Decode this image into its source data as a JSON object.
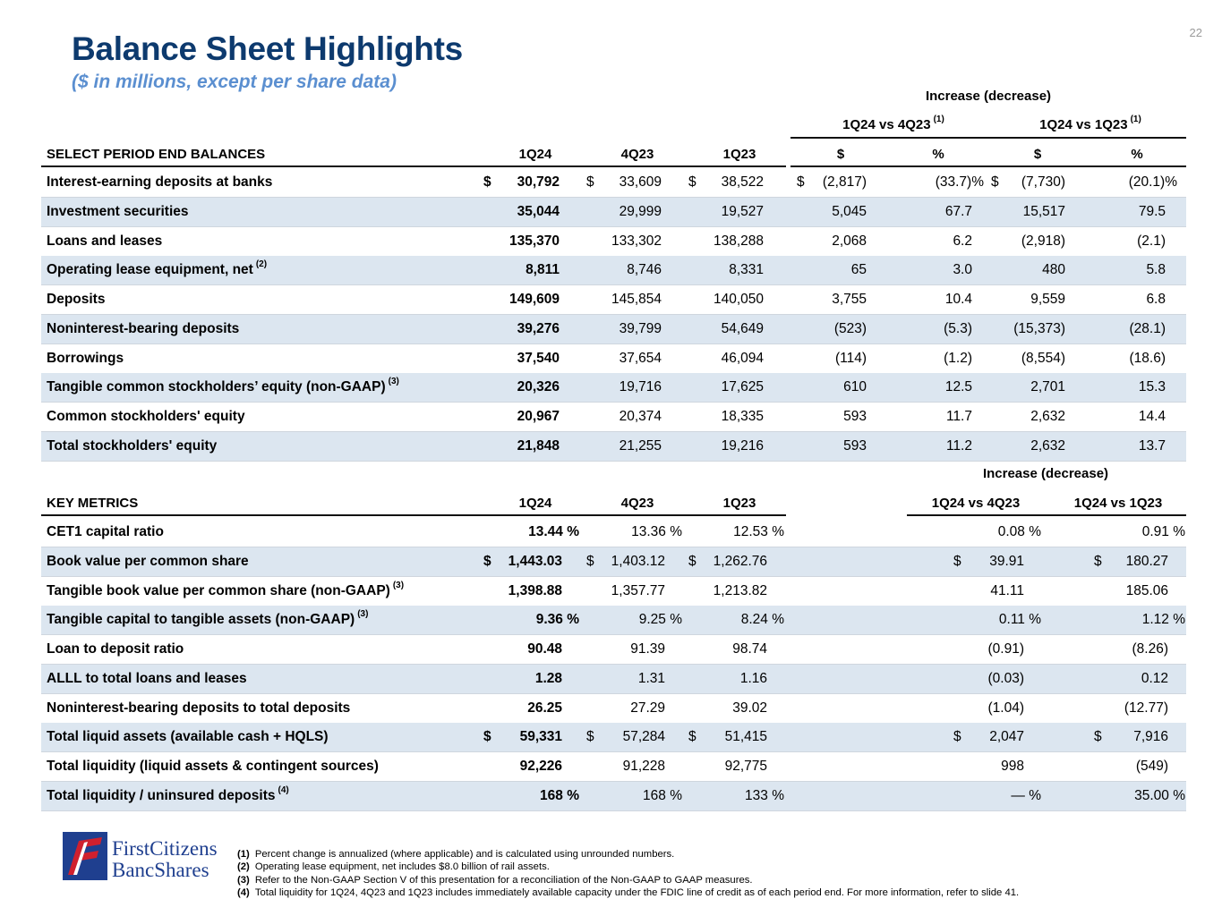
{
  "page_number": "22",
  "title": "Balance Sheet Highlights",
  "subtitle": "($ in millions, except per share data)",
  "balances": {
    "group_header": "Increase (decrease)",
    "compare_headers": [
      {
        "label": "1Q24 vs 4Q23",
        "sup": "(1)"
      },
      {
        "label": "1Q24 vs 1Q23",
        "sup": "(1)"
      }
    ],
    "columns": [
      "SELECT PERIOD END BALANCES",
      "1Q24",
      "4Q23",
      "1Q23",
      "$",
      "%",
      "$",
      "%"
    ],
    "rows": [
      {
        "label": "Interest-earning deposits at banks",
        "sup": "",
        "cells": [
          "$ 30,792",
          "$ 33,609",
          "$ 38,522",
          "$ (2,817)",
          "(33.7)%",
          "$ (7,730)",
          "(20.1)%"
        ]
      },
      {
        "label": "Investment securities",
        "sup": "",
        "cells": [
          "35,044",
          "29,999",
          "19,527",
          "5,045",
          "67.7",
          "15,517",
          "79.5"
        ]
      },
      {
        "label": "Loans and leases",
        "sup": "",
        "cells": [
          "135,370",
          "133,302",
          "138,288",
          "2,068",
          "6.2",
          "(2,918)",
          "(2.1)"
        ]
      },
      {
        "label": "Operating lease equipment, net",
        "sup": "(2)",
        "cells": [
          "8,811",
          "8,746",
          "8,331",
          "65",
          "3.0",
          "480",
          "5.8"
        ]
      },
      {
        "label": "Deposits",
        "sup": "",
        "cells": [
          "149,609",
          "145,854",
          "140,050",
          "3,755",
          "10.4",
          "9,559",
          "6.8"
        ]
      },
      {
        "label": "Noninterest-bearing deposits",
        "sup": "",
        "cells": [
          "39,276",
          "39,799",
          "54,649",
          "(523)",
          "(5.3)",
          "(15,373)",
          "(28.1)"
        ]
      },
      {
        "label": "Borrowings",
        "sup": "",
        "cells": [
          "37,540",
          "37,654",
          "46,094",
          "(114)",
          "(1.2)",
          "(8,554)",
          "(18.6)"
        ]
      },
      {
        "label": "Tangible common stockholders’ equity (non-GAAP)",
        "sup": "(3)",
        "cells": [
          "20,326",
          "19,716",
          "17,625",
          "610",
          "12.5",
          "2,701",
          "15.3"
        ]
      },
      {
        "label": "Common stockholders' equity",
        "sup": "",
        "cells": [
          "20,967",
          "20,374",
          "18,335",
          "593",
          "11.7",
          "2,632",
          "14.4"
        ]
      },
      {
        "label": "Total stockholders' equity",
        "sup": "",
        "cells": [
          "21,848",
          "21,255",
          "19,216",
          "593",
          "11.2",
          "2,632",
          "13.7"
        ]
      }
    ]
  },
  "metrics": {
    "group_header": "Increase (decrease)",
    "columns": [
      "KEY METRICS",
      "1Q24",
      "4Q23",
      "1Q23",
      "1Q24 vs 4Q23",
      "1Q24 vs 1Q23"
    ],
    "rows": [
      {
        "label": "CET1 capital ratio",
        "sup": "",
        "cells": [
          "13.44 %",
          "13.36 %",
          "12.53 %",
          "0.08 %",
          "0.91 %"
        ]
      },
      {
        "label": "Book value per common share",
        "sup": "",
        "cells": [
          "$ 1,443.03",
          "$ 1,403.12",
          "$ 1,262.76",
          "$ 39.91",
          "$ 180.27"
        ]
      },
      {
        "label": "Tangible book value per common share (non-GAAP)",
        "sup": "(3)",
        "cells": [
          "1,398.88",
          "1,357.77",
          "1,213.82",
          "41.11",
          "185.06"
        ]
      },
      {
        "label": "Tangible capital to tangible assets (non-GAAP)",
        "sup": "(3)",
        "cells": [
          "9.36 %",
          "9.25 %",
          "8.24 %",
          "0.11 %",
          "1.12 %"
        ]
      },
      {
        "label": "Loan to deposit ratio",
        "sup": "",
        "cells": [
          "90.48",
          "91.39",
          "98.74",
          "(0.91)",
          "(8.26)"
        ]
      },
      {
        "label": "ALLL to total loans and leases",
        "sup": "",
        "cells": [
          "1.28",
          "1.31",
          "1.16",
          "(0.03)",
          "0.12"
        ]
      },
      {
        "label": "Noninterest-bearing deposits to total deposits",
        "sup": "",
        "cells": [
          "26.25",
          "27.29",
          "39.02",
          "(1.04)",
          "(12.77)"
        ]
      },
      {
        "label": "Total liquid assets (available cash + HQLS)",
        "sup": "",
        "cells": [
          "$ 59,331",
          "$ 57,284",
          "$ 51,415",
          "$ 2,047",
          "$ 7,916"
        ]
      },
      {
        "label": "Total liquidity (liquid assets & contingent sources)",
        "sup": "",
        "cells": [
          "92,226",
          "91,228",
          "92,775",
          "998",
          "(549)"
        ]
      },
      {
        "label": "Total liquidity / uninsured deposits",
        "sup": "(4)",
        "cells": [
          "168 %",
          "168 %",
          "133 %",
          "— %",
          "35.00 %"
        ]
      }
    ]
  },
  "logo": {
    "line1": "FirstCitizens",
    "line2": "BancShares",
    "colors": {
      "blue": "#1f3f8f",
      "red": "#d0202e"
    }
  },
  "footnotes": [
    {
      "num": "(1)",
      "text": "Percent change is annualized (where applicable) and is calculated using unrounded numbers."
    },
    {
      "num": "(2)",
      "text": "Operating lease equipment, net includes $8.0 billion of rail assets."
    },
    {
      "num": "(3)",
      "text": "Refer to the Non-GAAP Section V of this presentation for a reconciliation of the Non-GAAP to GAAP measures."
    },
    {
      "num": "(4)",
      "text": "Total liquidity for 1Q24, 4Q23 and 1Q23 includes immediately available capacity under the FDIC line of credit as of each period end. For more information, refer to slide 41."
    }
  ]
}
